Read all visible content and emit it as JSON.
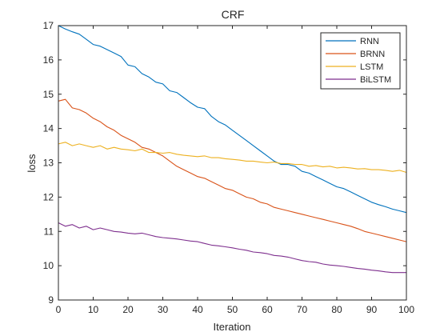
{
  "chart_data": {
    "type": "line",
    "title": "CRF",
    "xlabel": "Iteration",
    "ylabel": "loss",
    "xlim": [
      0,
      100
    ],
    "ylim": [
      9,
      17
    ],
    "xticks": [
      0,
      10,
      20,
      30,
      40,
      50,
      60,
      70,
      80,
      90,
      100
    ],
    "yticks": [
      9,
      10,
      11,
      12,
      13,
      14,
      15,
      16,
      17
    ],
    "grid": false,
    "legend_position": "top-right",
    "x": [
      0,
      2,
      4,
      6,
      8,
      10,
      12,
      14,
      16,
      18,
      20,
      22,
      24,
      26,
      28,
      30,
      32,
      34,
      36,
      38,
      40,
      42,
      44,
      46,
      48,
      50,
      52,
      54,
      56,
      58,
      60,
      62,
      64,
      66,
      68,
      70,
      72,
      74,
      76,
      78,
      80,
      82,
      84,
      86,
      88,
      90,
      92,
      94,
      96,
      98,
      100
    ],
    "series": [
      {
        "name": "RNN",
        "color": "#0072BD",
        "values": [
          17.0,
          16.9,
          16.82,
          16.75,
          16.6,
          16.45,
          16.4,
          16.3,
          16.2,
          16.1,
          15.85,
          15.8,
          15.6,
          15.5,
          15.35,
          15.3,
          15.1,
          15.05,
          14.9,
          14.75,
          14.62,
          14.58,
          14.35,
          14.2,
          14.1,
          13.95,
          13.8,
          13.65,
          13.5,
          13.35,
          13.2,
          13.05,
          12.95,
          12.95,
          12.9,
          12.75,
          12.7,
          12.6,
          12.5,
          12.4,
          12.3,
          12.25,
          12.15,
          12.05,
          11.95,
          11.85,
          11.78,
          11.72,
          11.65,
          11.6,
          11.55
        ]
      },
      {
        "name": "BRNN",
        "color": "#D95319",
        "values": [
          14.8,
          14.85,
          14.6,
          14.55,
          14.45,
          14.3,
          14.2,
          14.05,
          13.95,
          13.8,
          13.7,
          13.6,
          13.45,
          13.4,
          13.3,
          13.2,
          13.05,
          12.9,
          12.8,
          12.7,
          12.6,
          12.55,
          12.45,
          12.35,
          12.25,
          12.2,
          12.1,
          12.0,
          11.95,
          11.85,
          11.8,
          11.7,
          11.65,
          11.6,
          11.55,
          11.5,
          11.45,
          11.4,
          11.35,
          11.3,
          11.25,
          11.2,
          11.15,
          11.08,
          11.0,
          10.95,
          10.9,
          10.85,
          10.8,
          10.75,
          10.7
        ]
      },
      {
        "name": "LSTM",
        "color": "#EDB120",
        "values": [
          13.55,
          13.6,
          13.5,
          13.55,
          13.5,
          13.45,
          13.5,
          13.4,
          13.45,
          13.4,
          13.38,
          13.35,
          13.4,
          13.3,
          13.3,
          13.28,
          13.3,
          13.25,
          13.22,
          13.2,
          13.18,
          13.2,
          13.15,
          13.15,
          13.12,
          13.1,
          13.08,
          13.05,
          13.05,
          13.02,
          13.0,
          13.02,
          12.98,
          12.98,
          12.95,
          12.95,
          12.9,
          12.92,
          12.88,
          12.9,
          12.85,
          12.87,
          12.85,
          12.82,
          12.83,
          12.8,
          12.8,
          12.78,
          12.75,
          12.78,
          12.72
        ]
      },
      {
        "name": "BiLSTM",
        "color": "#7E2F8E",
        "values": [
          11.25,
          11.15,
          11.2,
          11.1,
          11.15,
          11.05,
          11.1,
          11.05,
          11.0,
          10.98,
          10.95,
          10.93,
          10.95,
          10.9,
          10.85,
          10.82,
          10.8,
          10.78,
          10.75,
          10.72,
          10.7,
          10.65,
          10.6,
          10.58,
          10.55,
          10.52,
          10.48,
          10.45,
          10.4,
          10.38,
          10.35,
          10.3,
          10.28,
          10.25,
          10.2,
          10.15,
          10.12,
          10.1,
          10.05,
          10.02,
          10.0,
          9.98,
          9.95,
          9.92,
          9.9,
          9.87,
          9.85,
          9.82,
          9.8,
          9.8,
          9.8
        ]
      }
    ]
  }
}
